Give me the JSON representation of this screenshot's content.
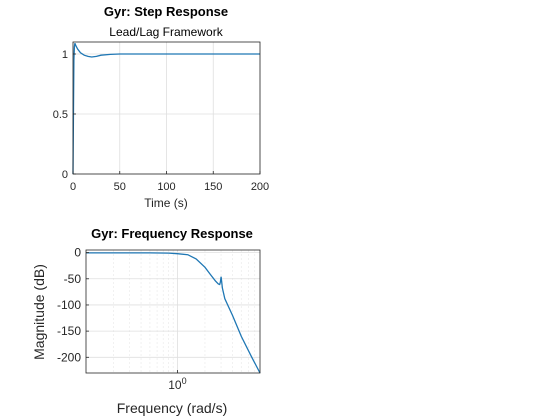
{
  "chart_data": [
    {
      "type": "line",
      "title": "Gyr: Step Response",
      "subtitle": "Lead/Lag Framework",
      "xlabel": "Time (s)",
      "ylabel": "",
      "xlim": [
        0,
        200
      ],
      "ylim": [
        0,
        1.1
      ],
      "xticks": [
        0,
        50,
        100,
        150,
        200
      ],
      "yticks": [
        0,
        0.5,
        1
      ],
      "xtick_labels": [
        "0",
        "50",
        "100",
        "150",
        "200"
      ],
      "ytick_labels": [
        "0",
        "0.5",
        "1"
      ],
      "grid": true,
      "series": [
        {
          "color": "#1f77b4",
          "x": [
            0,
            0.5,
            1,
            1.5,
            2,
            3,
            5,
            8,
            12,
            16,
            20,
            25,
            30,
            40,
            50,
            60,
            80,
            100,
            120,
            150,
            200
          ],
          "y": [
            0,
            0.55,
            0.95,
            1.06,
            1.09,
            1.07,
            1.04,
            1.01,
            0.99,
            0.98,
            0.975,
            0.98,
            0.99,
            0.997,
            1.0,
            1.0,
            1.0,
            1.0,
            1.0,
            1.0,
            1.0
          ]
        }
      ]
    },
    {
      "type": "line",
      "title": "Gyr: Frequency Response",
      "xlabel": "Frequency  (rad/s)",
      "ylabel": "Magnitude (dB)",
      "xscale": "log",
      "xlim": [
        0.1,
        8
      ],
      "ylim": [
        -230,
        5
      ],
      "xticks": [
        1
      ],
      "yticks": [
        0,
        -50,
        -100,
        -150,
        -200
      ],
      "xtick_labels": [
        "10^0"
      ],
      "ytick_labels": [
        "0",
        "-50",
        "-100",
        "-150",
        "-200"
      ],
      "grid": true,
      "series": [
        {
          "color": "#1f77b4",
          "x": [
            0.1,
            0.3,
            0.5,
            0.8,
            1.0,
            1.3,
            1.6,
            2.0,
            2.3,
            2.6,
            2.8,
            2.9,
            2.95,
            3.0,
            3.05,
            3.1,
            3.3,
            4.0,
            5.0,
            6.5,
            8.0
          ],
          "y": [
            -0.5,
            -0.5,
            -0.6,
            -1,
            -2,
            -4,
            -12,
            -28,
            -42,
            -54,
            -60,
            -61,
            -56,
            -46,
            -56,
            -68,
            -88,
            -120,
            -160,
            -200,
            -230
          ]
        }
      ]
    }
  ]
}
